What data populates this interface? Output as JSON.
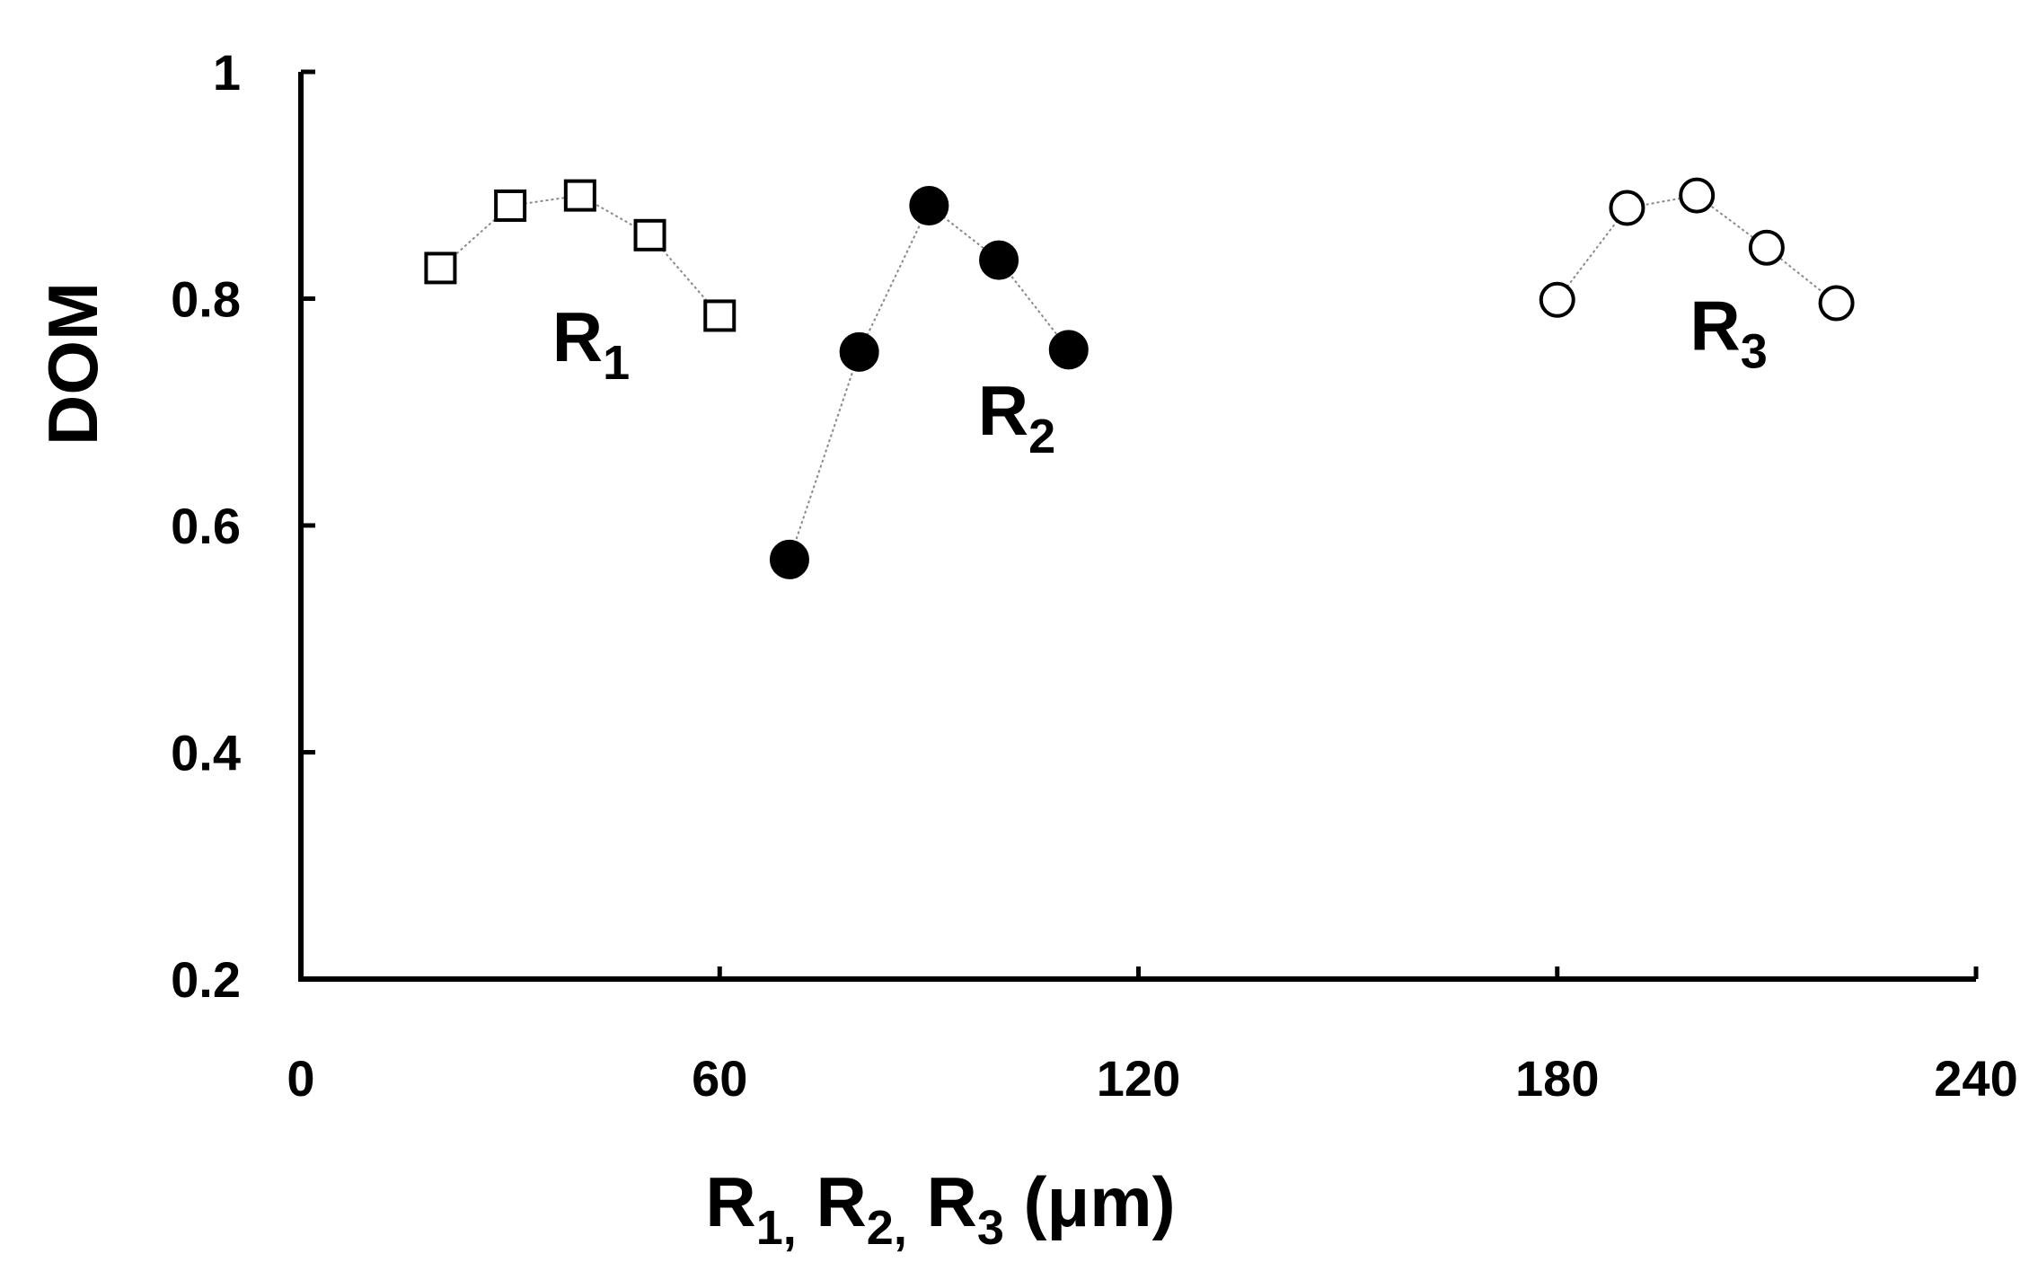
{
  "chart_data": {
    "type": "scatter",
    "xlabel": {
      "parts": [
        {
          "main": "R",
          "sub": "1,"
        },
        {
          "main": "R",
          "sub": "2,"
        },
        {
          "main": "R",
          "sub": "3"
        },
        {
          "main": "(μm)",
          "sub": ""
        }
      ]
    },
    "ylabel": "DOM",
    "xlim": [
      0,
      240
    ],
    "ylim": [
      0.2,
      1
    ],
    "x_ticks": [
      0,
      60,
      120,
      180,
      240
    ],
    "y_ticks": [
      0.2,
      0.4,
      0.6,
      0.8,
      1
    ],
    "x_tick_labels": [
      "0",
      "60",
      "120",
      "180",
      "240"
    ],
    "y_tick_labels": [
      "0.2",
      "0.4",
      "0.6",
      "0.8",
      "1"
    ],
    "grid": false,
    "series": [
      {
        "name": "R1",
        "label_main": "R",
        "label_sub": "1",
        "label_at": {
          "x": 36,
          "y": 0.745
        },
        "marker": "open-square",
        "x": [
          20,
          30,
          40,
          50,
          60
        ],
        "y": [
          0.827,
          0.882,
          0.891,
          0.856,
          0.785
        ]
      },
      {
        "name": "R2",
        "label_main": "R",
        "label_sub": "2",
        "label_at": {
          "x": 97,
          "y": 0.68
        },
        "marker": "filled-circle",
        "x": [
          70,
          80,
          90,
          100,
          110
        ],
        "y": [
          0.57,
          0.753,
          0.882,
          0.834,
          0.755
        ]
      },
      {
        "name": "R3",
        "label_main": "R",
        "label_sub": "3",
        "label_at": {
          "x": 199,
          "y": 0.755
        },
        "marker": "open-circle",
        "x": [
          180,
          190,
          200,
          210,
          220
        ],
        "y": [
          0.799,
          0.88,
          0.891,
          0.845,
          0.796
        ]
      }
    ]
  }
}
